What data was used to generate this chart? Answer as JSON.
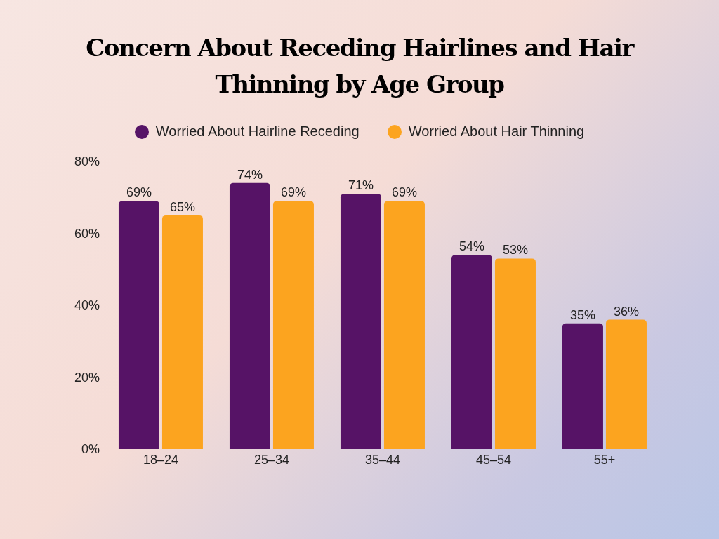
{
  "chart_data": {
    "type": "bar",
    "title": "Concern About Receding Hairlines and Hair Thinning by Age Group",
    "categories": [
      "18–24",
      "25–34",
      "35–44",
      "45–54",
      "55+"
    ],
    "series": [
      {
        "name": "Worried About Hairline Receding",
        "color": "#561366",
        "values": [
          69,
          74,
          71,
          54,
          35
        ],
        "value_labels": [
          "69%",
          "74%",
          "71%",
          "54%",
          "35%"
        ]
      },
      {
        "name": "Worried About Hair Thinning",
        "color": "#fca41f",
        "values": [
          65,
          69,
          69,
          53,
          36
        ],
        "value_labels": [
          "65%",
          "69%",
          "69%",
          "53%",
          "36%"
        ]
      }
    ],
    "ylim": [
      0,
      80
    ],
    "yticks": [
      {
        "value": 0,
        "label": "0%"
      },
      {
        "value": 20,
        "label": "20%"
      },
      {
        "value": 40,
        "label": "40%"
      },
      {
        "value": 60,
        "label": "60%"
      },
      {
        "value": 80,
        "label": "80%"
      }
    ],
    "grid": false,
    "legend": "top"
  }
}
